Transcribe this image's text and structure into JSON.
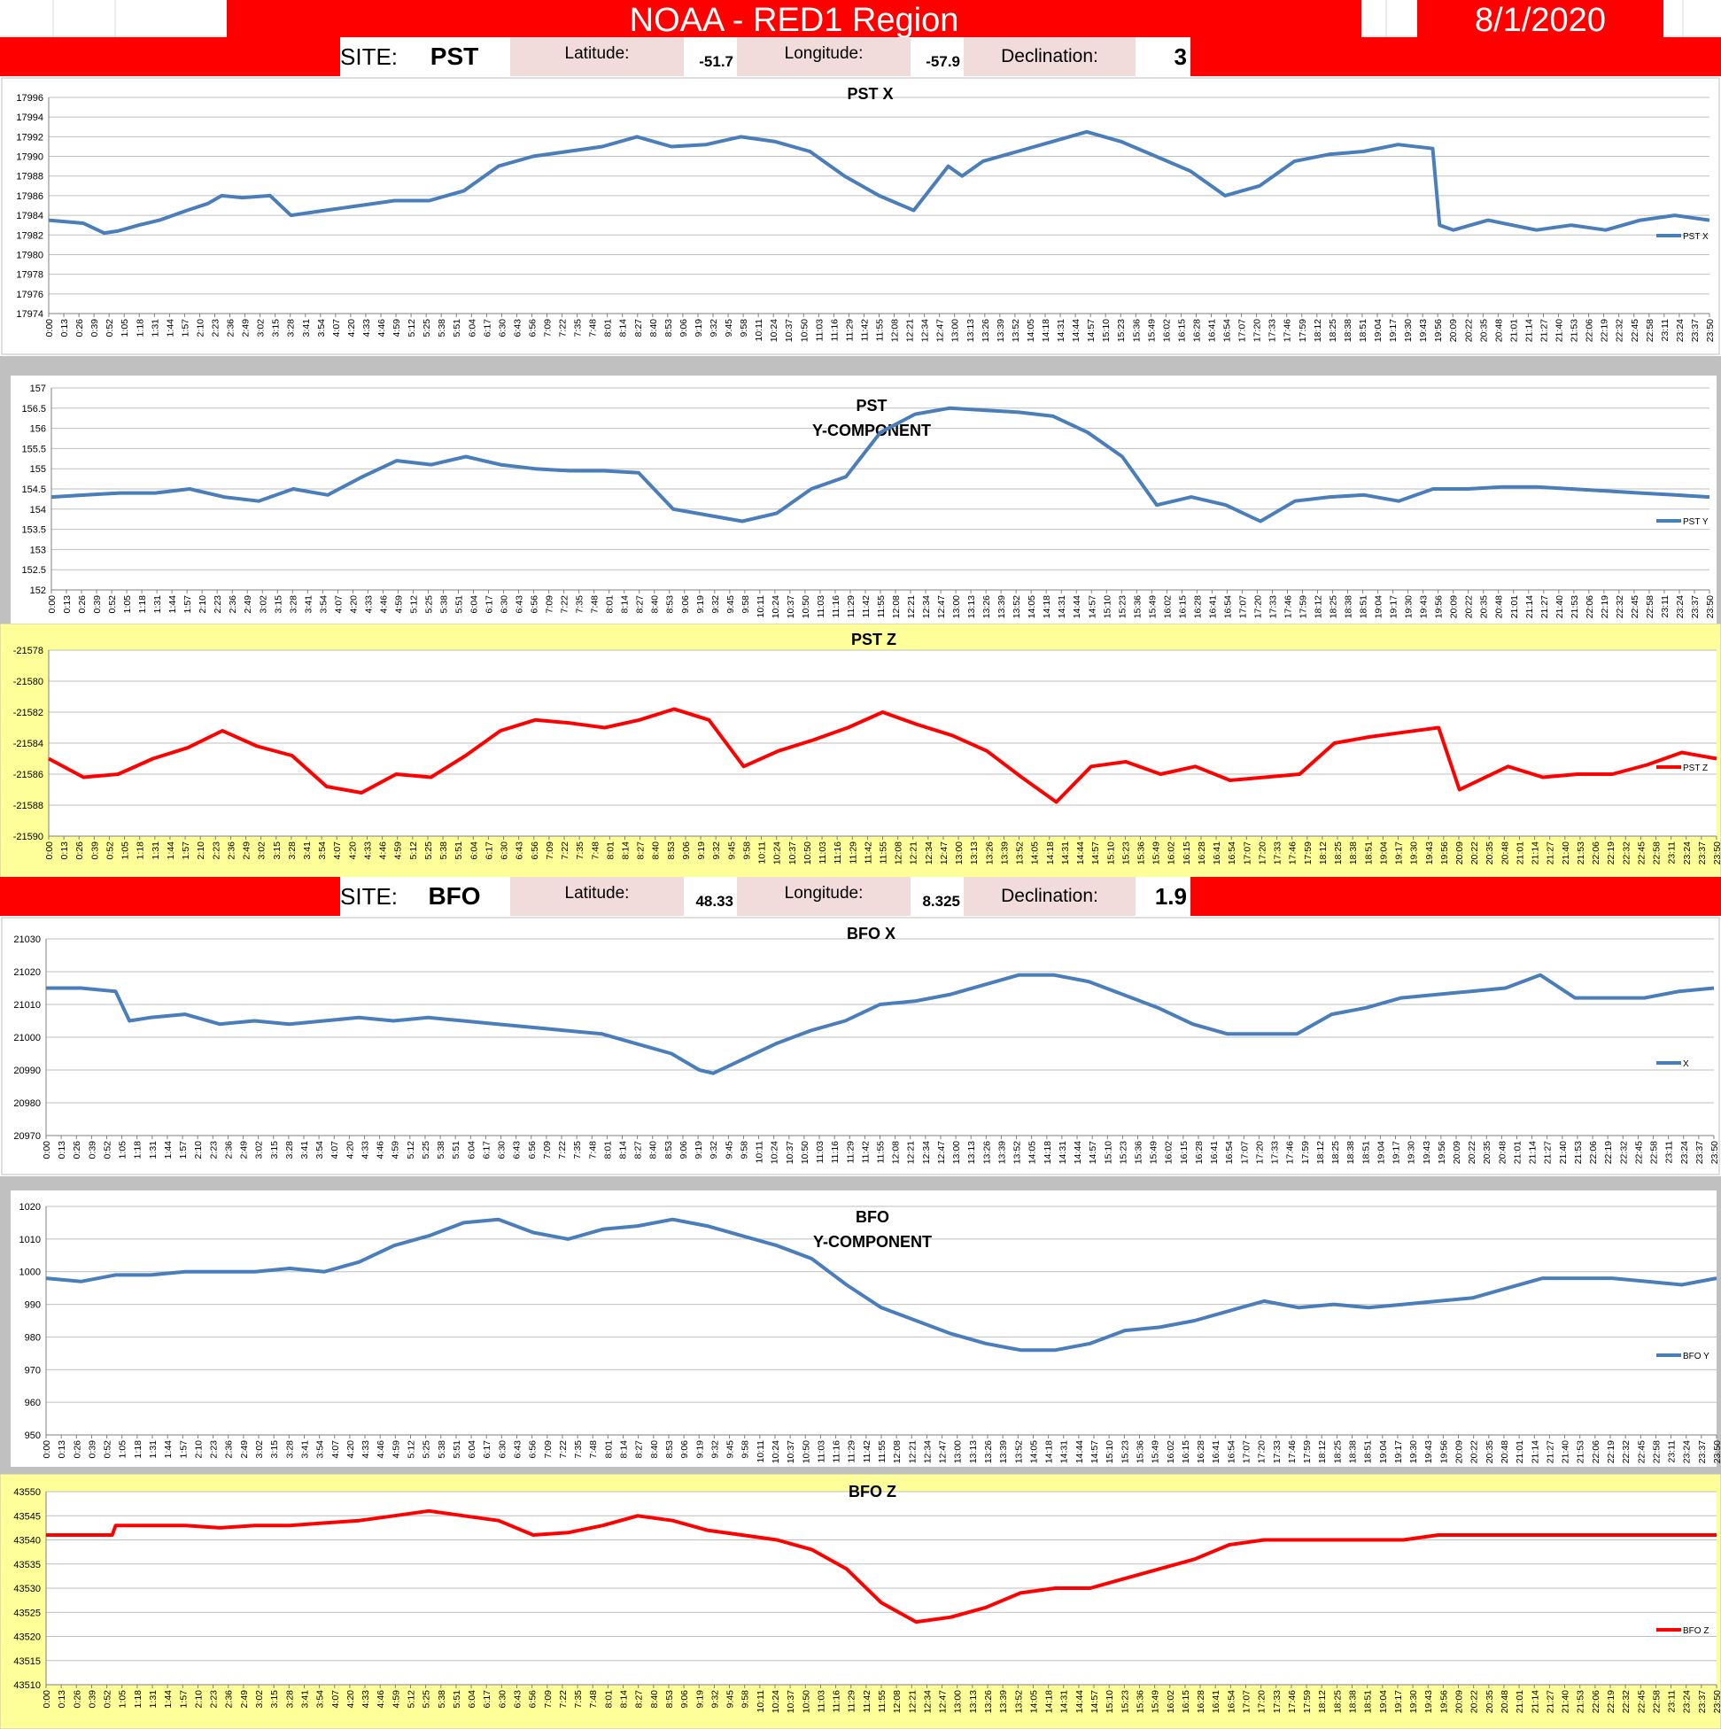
{
  "header": {
    "title": "NOAA - RED1 Region",
    "date": "8/1/2020"
  },
  "sites": [
    {
      "site_label": "SITE:",
      "site": "PST",
      "lat_label": "Latitude:",
      "lat": "-51.7",
      "lon_label": "Longitude:",
      "lon": "-57.9",
      "dec_label": "Declination:",
      "dec": "3"
    },
    {
      "site_label": "SITE:",
      "site": "BFO",
      "lat_label": "Latitude:",
      "lat": "48.33",
      "lon_label": "Longitude:",
      "lon": "8.325",
      "dec_label": "Declination:",
      "dec": "1.9"
    }
  ],
  "x_ticks": [
    "0:00",
    "0:13",
    "0:26",
    "0:39",
    "0:52",
    "1:05",
    "1:18",
    "1:31",
    "1:44",
    "1:57",
    "2:10",
    "2:23",
    "2:36",
    "2:49",
    "3:02",
    "3:15",
    "3:28",
    "3:41",
    "3:54",
    "4:07",
    "4:20",
    "4:33",
    "4:46",
    "4:59",
    "5:12",
    "5:25",
    "5:38",
    "5:51",
    "6:04",
    "6:17",
    "6:30",
    "6:43",
    "6:56",
    "7:09",
    "7:22",
    "7:35",
    "7:48",
    "8:01",
    "8:14",
    "8:27",
    "8:40",
    "8:53",
    "9:06",
    "9:19",
    "9:32",
    "9:45",
    "9:58",
    "10:11",
    "10:24",
    "10:37",
    "10:50",
    "11:03",
    "11:16",
    "11:29",
    "11:42",
    "11:55",
    "12:08",
    "12:21",
    "12:34",
    "12:47",
    "13:00",
    "13:13",
    "13:26",
    "13:39",
    "13:52",
    "14:05",
    "14:18",
    "14:31",
    "14:44",
    "14:57",
    "15:10",
    "15:23",
    "15:36",
    "15:49",
    "16:02",
    "16:15",
    "16:28",
    "16:41",
    "16:54",
    "17:07",
    "17:20",
    "17:33",
    "17:46",
    "17:59",
    "18:12",
    "18:25",
    "18:38",
    "18:51",
    "19:04",
    "19:17",
    "19:30",
    "19:43",
    "19:56",
    "20:09",
    "20:22",
    "20:35",
    "20:48",
    "21:01",
    "21:14",
    "21:27",
    "21:40",
    "21:53",
    "22:06",
    "22:19",
    "22:32",
    "22:45",
    "22:58",
    "23:11",
    "23:24",
    "23:37",
    "23:50"
  ],
  "colors": {
    "blue": "#4a7ebb",
    "red": "#ff0000",
    "gray": "#c0c0c0",
    "yellow": "#ffff99"
  },
  "chart_data": [
    {
      "type": "line",
      "title": [
        "PST X"
      ],
      "series": [
        {
          "name": "PST X",
          "color": "#4a7ebb",
          "x_hours": [
            0,
            0.5,
            0.8,
            1,
            1.3,
            1.6,
            2,
            2.3,
            2.5,
            2.8,
            3.2,
            3.5,
            4,
            4.5,
            5,
            5.5,
            6,
            6.5,
            7,
            7.5,
            8,
            8.5,
            9,
            9.5,
            10,
            10.5,
            11,
            11.5,
            12,
            12.5,
            13,
            13.2,
            13.5,
            14,
            14.5,
            15,
            15.5,
            16,
            16.5,
            17,
            17.5,
            18,
            18.5,
            19,
            19.5,
            20,
            20.1,
            20.3,
            20.8,
            21.5,
            22,
            22.5,
            23,
            23.5,
            24
          ],
          "values": [
            17983.5,
            17983.2,
            17982.2,
            17982.4,
            17983,
            17983.5,
            17984.5,
            17985.2,
            17986,
            17985.8,
            17986,
            17984,
            17984.5,
            17985,
            17985.5,
            17985.5,
            17986.5,
            17989,
            17990,
            17990.5,
            17991,
            17992,
            17991,
            17991.2,
            17992,
            17991.5,
            17990.5,
            17988,
            17986,
            17984.5,
            17989,
            17988,
            17989.5,
            17990.5,
            17991.5,
            17992.5,
            17991.5,
            17990,
            17988.5,
            17986,
            17987,
            17989.5,
            17990.2,
            17990.5,
            17991.2,
            17990.8,
            17983,
            17982.5,
            17983.5,
            17982.5,
            17983,
            17982.5,
            17983.5,
            17984,
            17983.5
          ]
        }
      ],
      "ylim": [
        17974,
        17996
      ],
      "yticks": [
        17974,
        17976,
        17978,
        17980,
        17982,
        17984,
        17986,
        17988,
        17990,
        17992,
        17994,
        17996
      ],
      "legend": "right"
    },
    {
      "type": "line",
      "title": [
        "PST",
        "Y-COMPONENT"
      ],
      "series": [
        {
          "name": "PST Y",
          "color": "#4a7ebb",
          "x_hours": [
            0,
            0.5,
            1,
            1.5,
            2,
            2.5,
            3,
            3.5,
            4,
            4.5,
            5,
            5.5,
            6,
            6.5,
            7,
            7.5,
            8,
            8.5,
            9,
            9.5,
            10,
            10.5,
            11,
            11.5,
            12,
            12.5,
            13,
            13.5,
            14,
            14.5,
            15,
            15.5,
            16,
            16.5,
            17,
            17.5,
            18,
            18.5,
            19,
            19.5,
            20,
            20.5,
            21,
            21.5,
            22,
            22.5,
            23,
            23.5,
            24
          ],
          "values": [
            154.3,
            154.35,
            154.4,
            154.4,
            154.5,
            154.3,
            154.2,
            154.5,
            154.35,
            154.8,
            155.2,
            155.1,
            155.3,
            155.1,
            155,
            154.95,
            154.95,
            154.9,
            154.0,
            153.85,
            153.7,
            153.9,
            154.5,
            154.8,
            155.9,
            156.35,
            156.5,
            156.45,
            156.4,
            156.3,
            155.9,
            155.3,
            154.1,
            154.3,
            154.1,
            153.7,
            154.2,
            154.3,
            154.35,
            154.2,
            154.5,
            154.5,
            154.55,
            154.55,
            154.5,
            154.45,
            154.4,
            154.35,
            154.3
          ]
        }
      ],
      "ylim": [
        152,
        157
      ],
      "yticks": [
        152,
        152.5,
        153,
        153.5,
        154,
        154.5,
        155,
        155.5,
        156,
        156.5,
        157
      ],
      "legend": "right"
    },
    {
      "type": "line",
      "title": [
        "PST Z"
      ],
      "series": [
        {
          "name": "PST Z",
          "color": "#ff0000",
          "x_hours": [
            0,
            0.5,
            1,
            1.5,
            2,
            2.5,
            3,
            3.5,
            4,
            4.5,
            5,
            5.5,
            6,
            6.5,
            7,
            7.5,
            8,
            8.5,
            9,
            9.5,
            10,
            10.5,
            11,
            11.5,
            12,
            12.5,
            13,
            13.5,
            14,
            14.5,
            15,
            15.5,
            16,
            16.5,
            17,
            17.5,
            18,
            18.5,
            19,
            19.5,
            20,
            20.3,
            21,
            21.5,
            22,
            22.5,
            23,
            23.5,
            24
          ],
          "values": [
            -21585,
            -21586.2,
            -21586,
            -21585,
            -21584.3,
            -21583.2,
            -21584.2,
            -21584.8,
            -21586.8,
            -21587.2,
            -21586,
            -21586.2,
            -21584.8,
            -21583.2,
            -21582.5,
            -21582.7,
            -21583,
            -21582.5,
            -21581.8,
            -21582.5,
            -21585.5,
            -21584.5,
            -21583.8,
            -21583,
            -21582,
            -21582.8,
            -21583.5,
            -21584.5,
            -21586.2,
            -21587.8,
            -21585.5,
            -21585.2,
            -21586,
            -21585.5,
            -21586.4,
            -21586.2,
            -21586,
            -21584,
            -21583.6,
            -21583.3,
            -21583,
            -21587,
            -21585.5,
            -21586.2,
            -21586,
            -21586,
            -21585.4,
            -21584.6,
            -21585
          ]
        }
      ],
      "ylim": [
        -21590,
        -21578
      ],
      "yticks": [
        -21590,
        -21588,
        -21586,
        -21584,
        -21582,
        -21580,
        -21578
      ],
      "legend": "right"
    },
    {
      "type": "line",
      "title": [
        "BFO  X"
      ],
      "series": [
        {
          "name": "X",
          "color": "#4a7ebb",
          "x_hours": [
            0,
            0.5,
            1,
            1.2,
            1.5,
            2,
            2.5,
            3,
            3.5,
            4,
            4.5,
            5,
            5.5,
            6,
            6.5,
            7,
            7.5,
            8,
            8.5,
            9,
            9.4,
            9.6,
            10,
            10.5,
            11,
            11.5,
            12,
            12.5,
            13,
            13.5,
            14,
            14.5,
            15,
            15.5,
            16,
            16.5,
            17,
            17.5,
            18,
            18.5,
            19,
            19.5,
            20,
            20.5,
            21,
            21.5,
            22,
            22.5,
            23,
            23.5,
            24
          ],
          "values": [
            21015,
            21015,
            21014,
            21005,
            21006,
            21007,
            21004,
            21005,
            21004,
            21005,
            21006,
            21005,
            21006,
            21005,
            21004,
            21003,
            21002,
            21001,
            20998,
            20995,
            20990,
            20989,
            20993,
            20998,
            21002,
            21005,
            21010,
            21011,
            21013,
            21016,
            21019,
            21019,
            21017,
            21013,
            21009,
            21004,
            21001,
            21001,
            21001,
            21007,
            21009,
            21012,
            21013,
            21014,
            21015,
            21019,
            21012,
            21012,
            21012,
            21014,
            21015
          ]
        }
      ],
      "ylim": [
        20970,
        21030
      ],
      "yticks": [
        20970,
        20980,
        20990,
        21000,
        21010,
        21020,
        21030
      ],
      "legend": "right"
    },
    {
      "type": "line",
      "title": [
        "BFO",
        "Y-COMPONENT"
      ],
      "series": [
        {
          "name": "BFO Y",
          "color": "#4a7ebb",
          "x_hours": [
            0,
            0.5,
            1,
            1.5,
            2,
            2.5,
            3,
            3.5,
            4,
            4.5,
            5,
            5.5,
            6,
            6.5,
            7,
            7.5,
            8,
            8.5,
            9,
            9.5,
            10,
            10.5,
            11,
            11.5,
            12,
            12.5,
            13,
            13.5,
            14,
            14.5,
            15,
            15.5,
            16,
            16.5,
            17,
            17.5,
            18,
            18.5,
            19,
            19.5,
            20,
            20.5,
            21,
            21.5,
            22,
            22.5,
            23,
            23.5,
            24
          ],
          "values": [
            998,
            997,
            999,
            999,
            1000,
            1000,
            1000,
            1001,
            1000,
            1003,
            1008,
            1011,
            1015,
            1016,
            1012,
            1010,
            1013,
            1014,
            1016,
            1014,
            1011,
            1008,
            1004,
            996,
            989,
            985,
            981,
            978,
            976,
            976,
            978,
            982,
            983,
            985,
            988,
            991,
            989,
            990,
            989,
            990,
            991,
            992,
            995,
            998,
            998,
            998,
            997,
            996,
            998
          ]
        }
      ],
      "ylim": [
        950,
        1020
      ],
      "yticks": [
        950,
        960,
        970,
        980,
        990,
        1000,
        1010,
        1020
      ],
      "legend": "right"
    },
    {
      "type": "line",
      "title": [
        "BFO Z"
      ],
      "series": [
        {
          "name": "BFO Z",
          "color": "#ff0000",
          "x_hours": [
            0,
            0.5,
            0.95,
            1,
            1.5,
            2,
            2.5,
            3,
            3.5,
            4,
            4.5,
            5,
            5.5,
            6,
            6.5,
            7,
            7.5,
            8,
            8.5,
            9,
            9.5,
            10,
            10.5,
            11,
            11.5,
            12,
            12.5,
            13,
            13.5,
            14,
            14.5,
            15,
            15.5,
            16,
            16.5,
            17,
            17.5,
            18,
            18.5,
            19,
            19.5,
            20,
            20.5,
            21,
            21.5,
            22,
            22.5,
            23,
            23.5,
            24
          ],
          "values": [
            43541,
            43541,
            43541,
            43543,
            43543,
            43543,
            43542.5,
            43543,
            43543,
            43543.5,
            43544,
            43545,
            43546,
            43545,
            43544,
            43541,
            43541.5,
            43543,
            43545,
            43544,
            43542,
            43541,
            43540,
            43538,
            43534,
            43527,
            43523,
            43524,
            43526,
            43529,
            43530,
            43530,
            43532,
            43534,
            43536,
            43539,
            43540,
            43540,
            43540,
            43540,
            43540,
            43541,
            43541,
            43541,
            43541,
            43541,
            43541,
            43541,
            43541,
            43541
          ]
        }
      ],
      "ylim": [
        43510,
        43550
      ],
      "yticks": [
        43510,
        43515,
        43520,
        43525,
        43530,
        43535,
        43540,
        43545,
        43550
      ],
      "legend": "right"
    }
  ]
}
